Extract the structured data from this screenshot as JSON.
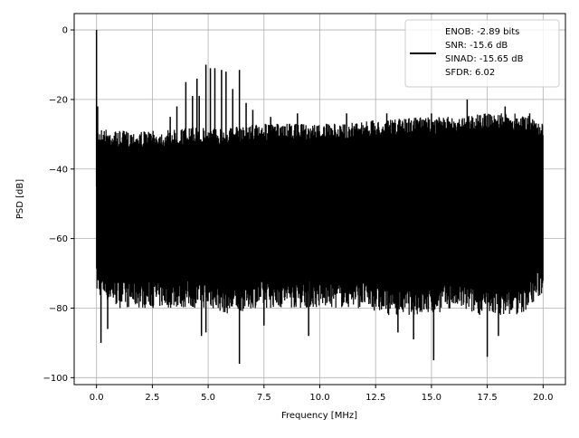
{
  "chart_data": {
    "type": "line",
    "title": "",
    "xlabel": "Frequency [MHz]",
    "ylabel": "PSD [dB]",
    "xlim": [
      -1,
      21
    ],
    "ylim": [
      -102,
      4.7
    ],
    "grid": true,
    "xticks": [
      0,
      2.5,
      5,
      7.5,
      10,
      12.5,
      15,
      17.5,
      20
    ],
    "xtick_labels": [
      "0.0",
      "2.5",
      "5.0",
      "7.5",
      "10.0",
      "12.5",
      "15.0",
      "17.5",
      "20.0"
    ],
    "yticks": [
      0,
      -20,
      -40,
      -60,
      -80,
      -100
    ],
    "ytick_labels": [
      "0",
      "−20",
      "−40",
      "−60",
      "−80",
      "−100"
    ],
    "legend": {
      "placement": "top-right",
      "entries": [
        "ENOB: -2.89 bits",
        "SNR: -15.6 dB",
        "SINAD: -15.65 dB",
        "SFDR: 6.02"
      ]
    },
    "series": [
      {
        "name": "PSD",
        "color": "#000000",
        "note_x_range": [
          0,
          20
        ],
        "envelope_x": [
          0,
          1,
          2,
          3,
          4,
          5,
          6,
          7,
          8,
          9,
          10,
          11,
          12,
          13,
          14,
          15,
          16,
          17,
          18,
          19,
          20
        ],
        "upper": [
          -30,
          -31,
          -31,
          -31,
          -30,
          -30,
          -30,
          -29,
          -29,
          -29,
          -29,
          -29,
          -28,
          -28,
          -27,
          -27,
          -27,
          -26,
          -26,
          -26,
          -28
        ],
        "lower": [
          -72,
          -76,
          -76,
          -76,
          -76,
          -76,
          -78,
          -76,
          -76,
          -76,
          -76,
          -76,
          -76,
          -78,
          -78,
          -78,
          -76,
          -78,
          -78,
          -78,
          -72
        ],
        "spurs": [
          [
            0.0,
            0.0
          ],
          [
            0.05,
            -22
          ],
          [
            3.3,
            -25
          ],
          [
            3.6,
            -22
          ],
          [
            4.0,
            -15
          ],
          [
            4.3,
            -19
          ],
          [
            4.5,
            -14
          ],
          [
            4.6,
            -19
          ],
          [
            4.9,
            -10
          ],
          [
            5.1,
            -11
          ],
          [
            5.3,
            -11
          ],
          [
            5.6,
            -11.5
          ],
          [
            5.8,
            -12
          ],
          [
            6.1,
            -17
          ],
          [
            6.4,
            -11.5
          ],
          [
            6.7,
            -21
          ],
          [
            7.0,
            -23
          ],
          [
            7.8,
            -25
          ],
          [
            9.0,
            -24
          ],
          [
            11.2,
            -24
          ],
          [
            13.0,
            -24
          ],
          [
            15.0,
            -24
          ],
          [
            16.6,
            -20
          ],
          [
            18.3,
            -22
          ],
          [
            19.4,
            -24
          ]
        ],
        "deep_dips": [
          [
            0.2,
            -90
          ],
          [
            0.5,
            -86
          ],
          [
            4.7,
            -88
          ],
          [
            4.9,
            -87
          ],
          [
            6.4,
            -96
          ],
          [
            7.5,
            -85
          ],
          [
            9.5,
            -88
          ],
          [
            13.5,
            -87
          ],
          [
            14.2,
            -89
          ],
          [
            15.1,
            -95
          ],
          [
            17.5,
            -94
          ],
          [
            18.0,
            -88
          ]
        ]
      }
    ]
  }
}
